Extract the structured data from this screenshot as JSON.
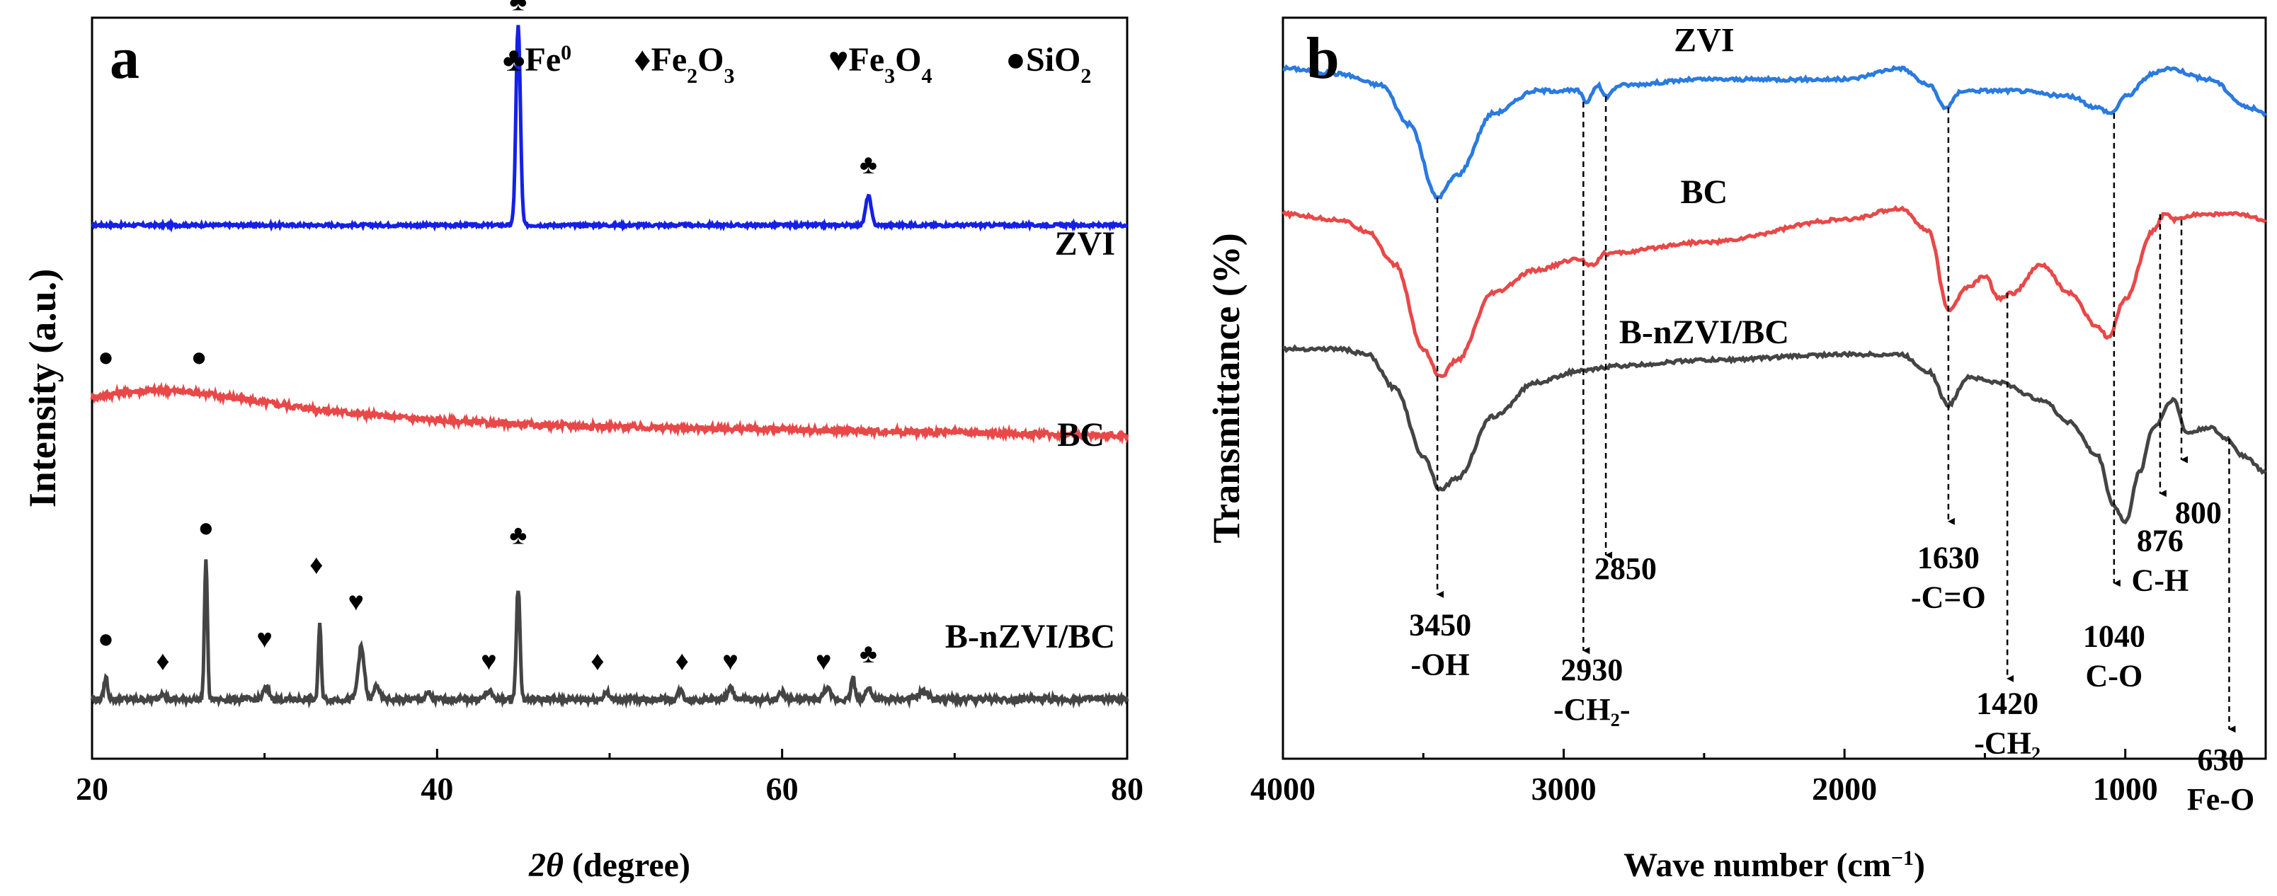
{
  "colors": {
    "zvi": "#1520e6",
    "bc": "#e84848",
    "bnzvi": "#444444",
    "fe0": "#f07818",
    "fe2o3": "#4a7a1c",
    "fe3o4": "#ee22ee",
    "sio2": "#8a6414",
    "ftir_zvi": "#2a7ae0"
  },
  "chart_data": [
    {
      "type": "line",
      "panel_label": "a",
      "xlabel_italic": "2θ",
      "xlabel_rest": " (degree)",
      "ylabel": "Intensity (a.u.)",
      "xlim": [
        20,
        80
      ],
      "xticks": [
        "20",
        "40",
        "60",
        "80"
      ],
      "yticks": "none",
      "series": [
        {
          "name": "ZVI",
          "color_key": "zvi",
          "baseline": 0.72,
          "noise": 0.002,
          "peaks": [
            {
              "x": 44.7,
              "h": 0.27,
              "w": 0.18
            },
            {
              "x": 65.0,
              "h": 0.04,
              "w": 0.22
            }
          ]
        },
        {
          "name": "BC",
          "color_key": "bc",
          "baseline": 0.46,
          "noise": 0.004,
          "slope": "broad",
          "peaks": []
        },
        {
          "name": "B-nZVI/BC",
          "color_key": "bnzvi",
          "baseline": 0.08,
          "noise": 0.004,
          "peaks": [
            {
              "x": 20.8,
              "h": 0.03,
              "w": 0.15
            },
            {
              "x": 24.1,
              "h": 0.01,
              "w": 0.2
            },
            {
              "x": 26.6,
              "h": 0.19,
              "w": 0.12
            },
            {
              "x": 30.1,
              "h": 0.015,
              "w": 0.25
            },
            {
              "x": 33.2,
              "h": 0.1,
              "w": 0.12
            },
            {
              "x": 35.6,
              "h": 0.07,
              "w": 0.25
            },
            {
              "x": 36.5,
              "h": 0.02,
              "w": 0.2
            },
            {
              "x": 39.5,
              "h": 0.008,
              "w": 0.2
            },
            {
              "x": 43.0,
              "h": 0.01,
              "w": 0.3
            },
            {
              "x": 44.7,
              "h": 0.15,
              "w": 0.15
            },
            {
              "x": 49.8,
              "h": 0.01,
              "w": 0.2
            },
            {
              "x": 54.1,
              "h": 0.012,
              "w": 0.2
            },
            {
              "x": 57.0,
              "h": 0.015,
              "w": 0.25
            },
            {
              "x": 60.0,
              "h": 0.01,
              "w": 0.2
            },
            {
              "x": 62.6,
              "h": 0.015,
              "w": 0.25
            },
            {
              "x": 64.1,
              "h": 0.03,
              "w": 0.15
            },
            {
              "x": 65.0,
              "h": 0.018,
              "w": 0.2
            },
            {
              "x": 68.2,
              "h": 0.01,
              "w": 0.4
            }
          ]
        }
      ],
      "curve_labels": [
        "ZVI",
        "BC",
        "B-nZVI/BC"
      ],
      "legend": [
        {
          "symbol": "♣",
          "key": "fe0",
          "main": "Fe",
          "sub": "",
          "sup": "0",
          "rest": ""
        },
        {
          "symbol": "♦",
          "key": "fe2o3",
          "main": "Fe",
          "sub": "2",
          "sup": "",
          "rest": "O",
          "sub2": "3"
        },
        {
          "symbol": "♥",
          "key": "fe3o4",
          "main": "Fe",
          "sub": "3",
          "sup": "",
          "rest": "O",
          "sub2": "4"
        },
        {
          "symbol": "●",
          "key": "sio2",
          "main": "SiO",
          "sub": "2",
          "sup": "",
          "rest": ""
        }
      ],
      "markers": [
        {
          "sym": "♣",
          "key": "fe0",
          "x": 44.7,
          "y": 1.01
        },
        {
          "sym": "♣",
          "key": "fe0",
          "x": 65.0,
          "y": 0.79
        },
        {
          "sym": "●",
          "key": "sio2",
          "x": 20.8,
          "y": 0.53
        },
        {
          "sym": "●",
          "key": "sio2",
          "x": 26.2,
          "y": 0.53
        },
        {
          "sym": "●",
          "key": "sio2",
          "x": 26.6,
          "y": 0.3
        },
        {
          "sym": "●",
          "key": "sio2",
          "x": 20.8,
          "y": 0.15
        },
        {
          "sym": "♦",
          "key": "fe2o3",
          "x": 24.1,
          "y": 0.12
        },
        {
          "sym": "♦",
          "key": "fe2o3",
          "x": 33.0,
          "y": 0.25
        },
        {
          "sym": "♦",
          "key": "fe2o3",
          "x": 49.3,
          "y": 0.12
        },
        {
          "sym": "♦",
          "key": "fe2o3",
          "x": 54.2,
          "y": 0.12
        },
        {
          "sym": "♥",
          "key": "fe3o4",
          "x": 30.0,
          "y": 0.15
        },
        {
          "sym": "♥",
          "key": "fe3o4",
          "x": 35.3,
          "y": 0.2
        },
        {
          "sym": "♥",
          "key": "fe3o4",
          "x": 43.0,
          "y": 0.12
        },
        {
          "sym": "♥",
          "key": "fe3o4",
          "x": 57.0,
          "y": 0.12
        },
        {
          "sym": "♥",
          "key": "fe3o4",
          "x": 62.4,
          "y": 0.12
        },
        {
          "sym": "♣",
          "key": "fe0",
          "x": 44.7,
          "y": 0.29
        },
        {
          "sym": "♣",
          "key": "fe0",
          "x": 65.0,
          "y": 0.13
        }
      ]
    },
    {
      "type": "line",
      "panel_label": "b",
      "xlabel_main": "Wave number (cm",
      "xlabel_sup": "−1",
      "xlabel_end": ")",
      "ylabel": "Transmittance (%)",
      "xlim": [
        4000,
        500
      ],
      "xticks": [
        "4000",
        "3000",
        "2000",
        "1000"
      ],
      "yticks": "none",
      "curve_labels": [
        "ZVI",
        "BC",
        "B-nZVI/BC"
      ],
      "series": [
        {
          "name": "ZVI",
          "color_key": "ftir_zvi",
          "points": [
            [
              4000,
              0.93
            ],
            [
              3800,
              0.92
            ],
            [
              3650,
              0.9
            ],
            [
              3550,
              0.83
            ],
            [
              3450,
              0.7
            ],
            [
              3380,
              0.74
            ],
            [
              3250,
              0.85
            ],
            [
              3100,
              0.89
            ],
            [
              2950,
              0.89
            ],
            [
              2920,
              0.87
            ],
            [
              2880,
              0.9
            ],
            [
              2850,
              0.88
            ],
            [
              2800,
              0.9
            ],
            [
              2500,
              0.91
            ],
            [
              2000,
              0.91
            ],
            [
              1800,
              0.93
            ],
            [
              1700,
              0.9
            ],
            [
              1640,
              0.86
            ],
            [
              1580,
              0.89
            ],
            [
              1400,
              0.89
            ],
            [
              1200,
              0.88
            ],
            [
              1100,
              0.86
            ],
            [
              1050,
              0.85
            ],
            [
              1000,
              0.88
            ],
            [
              900,
              0.92
            ],
            [
              850,
              0.93
            ],
            [
              700,
              0.91
            ],
            [
              560,
              0.86
            ],
            [
              500,
              0.85
            ]
          ]
        },
        {
          "name": "BC",
          "color_key": "bc",
          "points": [
            [
              4000,
              0.67
            ],
            [
              3800,
              0.66
            ],
            [
              3700,
              0.64
            ],
            [
              3600,
              0.58
            ],
            [
              3500,
              0.43
            ],
            [
              3440,
              0.38
            ],
            [
              3380,
              0.41
            ],
            [
              3250,
              0.53
            ],
            [
              3100,
              0.57
            ],
            [
              2950,
              0.59
            ],
            [
              2900,
              0.58
            ],
            [
              2850,
              0.6
            ],
            [
              2500,
              0.62
            ],
            [
              2000,
              0.66
            ],
            [
              1800,
              0.68
            ],
            [
              1700,
              0.64
            ],
            [
              1630,
              0.5
            ],
            [
              1560,
              0.54
            ],
            [
              1500,
              0.56
            ],
            [
              1450,
              0.52
            ],
            [
              1400,
              0.53
            ],
            [
              1300,
              0.58
            ],
            [
              1200,
              0.53
            ],
            [
              1100,
              0.47
            ],
            [
              1060,
              0.45
            ],
            [
              1000,
              0.52
            ],
            [
              900,
              0.64
            ],
            [
              860,
              0.67
            ],
            [
              820,
              0.66
            ],
            [
              750,
              0.67
            ],
            [
              600,
              0.67
            ],
            [
              500,
              0.66
            ]
          ]
        },
        {
          "name": "B-nZVI/BC",
          "color_key": "bnzvi",
          "points": [
            [
              4000,
              0.43
            ],
            [
              3800,
              0.43
            ],
            [
              3700,
              0.42
            ],
            [
              3600,
              0.36
            ],
            [
              3500,
              0.24
            ],
            [
              3440,
              0.18
            ],
            [
              3380,
              0.2
            ],
            [
              3250,
              0.31
            ],
            [
              3100,
              0.37
            ],
            [
              2950,
              0.39
            ],
            [
              2800,
              0.4
            ],
            [
              2500,
              0.41
            ],
            [
              2000,
              0.42
            ],
            [
              1800,
              0.42
            ],
            [
              1700,
              0.39
            ],
            [
              1630,
              0.33
            ],
            [
              1560,
              0.38
            ],
            [
              1450,
              0.37
            ],
            [
              1300,
              0.34
            ],
            [
              1200,
              0.3
            ],
            [
              1100,
              0.24
            ],
            [
              1040,
              0.15
            ],
            [
              1000,
              0.12
            ],
            [
              950,
              0.21
            ],
            [
              900,
              0.29
            ],
            [
              830,
              0.34
            ],
            [
              780,
              0.28
            ],
            [
              700,
              0.29
            ],
            [
              640,
              0.27
            ],
            [
              580,
              0.24
            ],
            [
              500,
              0.21
            ]
          ]
        }
      ],
      "annotations": [
        {
          "x": 3450,
          "y_top": 0.7,
          "y_bot": -0.02,
          "lines": [
            "3450",
            "-OH"
          ],
          "lx": 3440,
          "ly": -0.08,
          "anchor": "middle"
        },
        {
          "x": 2930,
          "y_top": 0.87,
          "y_bot": -0.12,
          "lines": [
            "2930",
            "-CH₂-"
          ],
          "lx": 2900,
          "ly": -0.16,
          "anchor": "middle"
        },
        {
          "x": 2850,
          "y_top": 0.88,
          "y_bot": 0.05,
          "lines": [
            "2850"
          ],
          "lx": 2780,
          "ly": 0.02,
          "anchor": "middle"
        },
        {
          "x": 1630,
          "y_top": 0.86,
          "y_bot": 0.11,
          "lines": [
            "1630",
            "-C=O"
          ],
          "lx": 1630,
          "ly": 0.04,
          "anchor": "middle"
        },
        {
          "x": 1420,
          "y_top": 0.53,
          "y_bot": -0.17,
          "lines": [
            "1420",
            "-CH₂"
          ],
          "lx": 1420,
          "ly": -0.22,
          "anchor": "middle"
        },
        {
          "x": 1040,
          "y_top": 0.85,
          "y_bot": 0.0,
          "lines": [
            "1040",
            "C-O"
          ],
          "lx": 1040,
          "ly": -0.1,
          "anchor": "middle"
        },
        {
          "x": 876,
          "y_top": 0.67,
          "y_bot": 0.16,
          "lines": [
            "876",
            "C-H"
          ],
          "lx": 876,
          "ly": 0.07,
          "anchor": "middle"
        },
        {
          "x": 800,
          "y_top": 0.66,
          "y_bot": 0.22,
          "lines": [
            "800"
          ],
          "lx": 740,
          "ly": 0.12,
          "anchor": "middle"
        },
        {
          "x": 630,
          "y_top": 0.27,
          "y_bot": -0.26,
          "lines": [
            "630",
            "Fe-O"
          ],
          "lx": 660,
          "ly": -0.32,
          "anchor": "middle"
        }
      ]
    }
  ]
}
